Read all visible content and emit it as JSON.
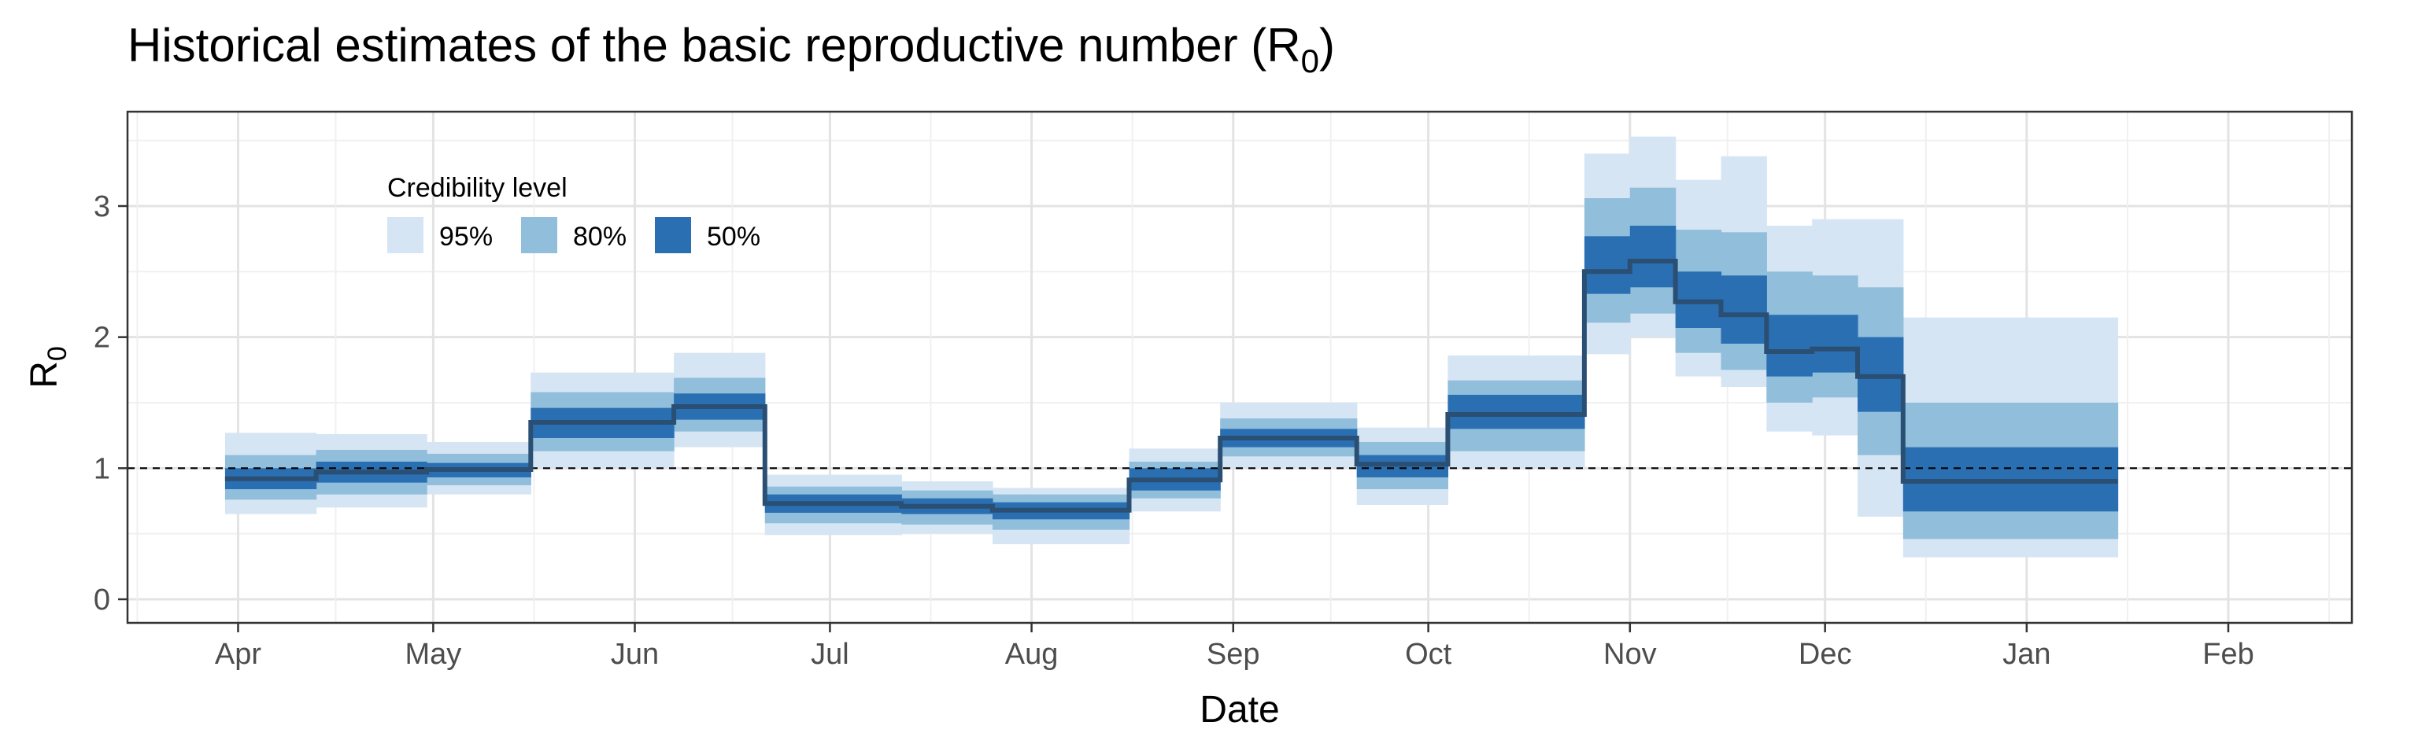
{
  "chart_data": {
    "type": "area",
    "title": "Historical estimates of the basic reproductive number (R",
    "title_subscript": "0",
    "title_suffix": ")",
    "xlabel": "Date",
    "ylabel": "R",
    "ylabel_subscript": "0",
    "x_tick_labels": [
      "Apr",
      "May",
      "Jun",
      "Jul",
      "Aug",
      "Sep",
      "Oct",
      "Nov",
      "Dec",
      "Jan",
      "Feb"
    ],
    "x_tick_dates": [
      "2020-04-01",
      "2020-05-01",
      "2020-06-01",
      "2020-07-01",
      "2020-08-01",
      "2020-09-01",
      "2020-10-01",
      "2020-11-01",
      "2020-12-01",
      "2021-01-01",
      "2021-02-01"
    ],
    "xlim": [
      "2020-03-15",
      "2021-02-20"
    ],
    "y_ticks": [
      0,
      1,
      2,
      3
    ],
    "ylim": [
      -0.18,
      3.72
    ],
    "reference_line": {
      "y": 1,
      "style": "dashed"
    },
    "grid": true,
    "legend": {
      "title": "Credibility level",
      "placement": "top-left",
      "entries": [
        {
          "label": "95%",
          "color": "#d6e5f4"
        },
        {
          "label": "80%",
          "color": "#90bedb"
        },
        {
          "label": "50%",
          "color": "#2b6fb3"
        }
      ]
    },
    "median_color": "#2a4f73",
    "segments": [
      {
        "start": "2020-03-30",
        "end": "2020-04-13",
        "median": 0.92,
        "lo50": 0.84,
        "hi50": 1.0,
        "lo80": 0.76,
        "hi80": 1.1,
        "lo95": 0.65,
        "hi95": 1.27
      },
      {
        "start": "2020-04-13",
        "end": "2020-04-30",
        "median": 0.97,
        "lo50": 0.89,
        "hi50": 1.05,
        "lo80": 0.8,
        "hi80": 1.14,
        "lo95": 0.7,
        "hi95": 1.26
      },
      {
        "start": "2020-04-30",
        "end": "2020-05-16",
        "median": 0.99,
        "lo50": 0.93,
        "hi50": 1.04,
        "lo80": 0.87,
        "hi80": 1.11,
        "lo95": 0.8,
        "hi95": 1.2
      },
      {
        "start": "2020-05-16",
        "end": "2020-06-07",
        "median": 1.35,
        "lo50": 1.23,
        "hi50": 1.46,
        "lo80": 1.13,
        "hi80": 1.58,
        "lo95": 1.0,
        "hi95": 1.73
      },
      {
        "start": "2020-06-07",
        "end": "2020-06-21",
        "median": 1.47,
        "lo50": 1.37,
        "hi50": 1.57,
        "lo80": 1.28,
        "hi80": 1.69,
        "lo95": 1.16,
        "hi95": 1.88
      },
      {
        "start": "2020-06-21",
        "end": "2020-07-12",
        "median": 0.73,
        "lo50": 0.66,
        "hi50": 0.8,
        "lo80": 0.58,
        "hi80": 0.86,
        "lo95": 0.49,
        "hi95": 0.95
      },
      {
        "start": "2020-07-12",
        "end": "2020-07-26",
        "median": 0.71,
        "lo50": 0.65,
        "hi50": 0.77,
        "lo80": 0.57,
        "hi80": 0.83,
        "lo95": 0.5,
        "hi95": 0.9
      },
      {
        "start": "2020-07-26",
        "end": "2020-08-16",
        "median": 0.68,
        "lo50": 0.61,
        "hi50": 0.74,
        "lo80": 0.53,
        "hi80": 0.8,
        "lo95": 0.42,
        "hi95": 0.85
      },
      {
        "start": "2020-08-16",
        "end": "2020-08-30",
        "median": 0.91,
        "lo50": 0.83,
        "hi50": 1.0,
        "lo80": 0.77,
        "hi80": 1.05,
        "lo95": 0.67,
        "hi95": 1.15
      },
      {
        "start": "2020-08-30",
        "end": "2020-09-20",
        "median": 1.23,
        "lo50": 1.16,
        "hi50": 1.3,
        "lo80": 1.09,
        "hi80": 1.38,
        "lo95": 1.0,
        "hi95": 1.5
      },
      {
        "start": "2020-09-20",
        "end": "2020-10-04",
        "median": 1.03,
        "lo50": 0.93,
        "hi50": 1.1,
        "lo80": 0.84,
        "hi80": 1.2,
        "lo95": 0.72,
        "hi95": 1.31
      },
      {
        "start": "2020-10-04",
        "end": "2020-10-25",
        "median": 1.41,
        "lo50": 1.3,
        "hi50": 1.56,
        "lo80": 1.13,
        "hi80": 1.67,
        "lo95": 1.0,
        "hi95": 1.86
      },
      {
        "start": "2020-10-25",
        "end": "2020-11-01",
        "median": 2.5,
        "lo50": 2.33,
        "hi50": 2.77,
        "lo80": 2.11,
        "hi80": 3.06,
        "lo95": 1.87,
        "hi95": 3.4
      },
      {
        "start": "2020-11-01",
        "end": "2020-11-08",
        "median": 2.58,
        "lo50": 2.38,
        "hi50": 2.85,
        "lo80": 2.18,
        "hi80": 3.14,
        "lo95": 2.0,
        "hi95": 3.53
      },
      {
        "start": "2020-11-08",
        "end": "2020-11-15",
        "median": 2.27,
        "lo50": 2.07,
        "hi50": 2.5,
        "lo80": 1.88,
        "hi80": 2.82,
        "lo95": 1.7,
        "hi95": 3.2
      },
      {
        "start": "2020-11-15",
        "end": "2020-11-22",
        "median": 2.17,
        "lo50": 1.95,
        "hi50": 2.47,
        "lo80": 1.75,
        "hi80": 2.8,
        "lo95": 1.62,
        "hi95": 3.38
      },
      {
        "start": "2020-11-22",
        "end": "2020-11-29",
        "median": 1.89,
        "lo50": 1.7,
        "hi50": 2.17,
        "lo80": 1.5,
        "hi80": 2.5,
        "lo95": 1.28,
        "hi95": 2.85
      },
      {
        "start": "2020-11-29",
        "end": "2020-12-06",
        "median": 1.91,
        "lo50": 1.73,
        "hi50": 2.17,
        "lo80": 1.54,
        "hi80": 2.47,
        "lo95": 1.25,
        "hi95": 2.9
      },
      {
        "start": "2020-12-06",
        "end": "2020-12-13",
        "median": 1.7,
        "lo50": 1.43,
        "hi50": 2.0,
        "lo80": 1.1,
        "hi80": 2.38,
        "lo95": 0.63,
        "hi95": 2.9
      },
      {
        "start": "2020-12-13",
        "end": "2021-01-15",
        "median": 0.9,
        "lo50": 0.67,
        "hi50": 1.16,
        "lo80": 0.46,
        "hi80": 1.5,
        "lo95": 0.32,
        "hi95": 2.15
      }
    ]
  }
}
